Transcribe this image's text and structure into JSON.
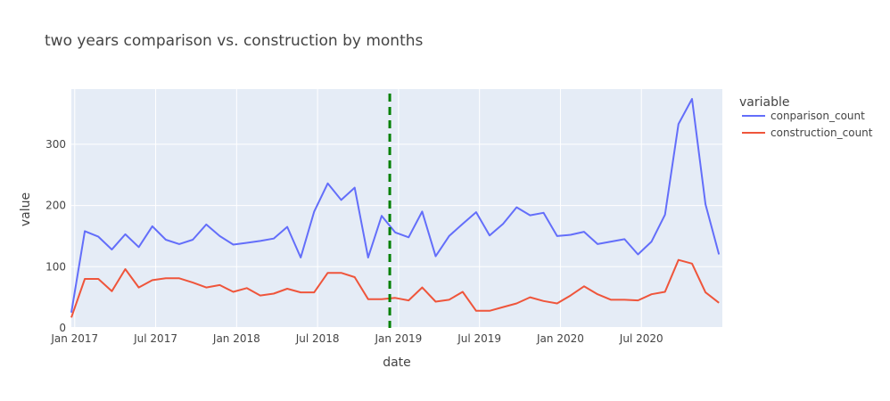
{
  "chart_data": {
    "type": "line",
    "title": "two years comparison vs. construction by months",
    "xlabel": "date",
    "ylabel": "value",
    "ylim": [
      0,
      390
    ],
    "yticks": [
      0,
      100,
      200,
      300
    ],
    "xticks": [
      {
        "label": "Jan 2017",
        "x": 0.25
      },
      {
        "label": "Jul 2017",
        "x": 6.25
      },
      {
        "label": "Jan 2018",
        "x": 12.25
      },
      {
        "label": "Jul 2018",
        "x": 18.25
      },
      {
        "label": "Jan 2019",
        "x": 24.25
      },
      {
        "label": "Jul 2019",
        "x": 30.25
      },
      {
        "label": "Jan 2020",
        "x": 36.25
      },
      {
        "label": "Jul 2020",
        "x": 42.25
      }
    ],
    "xlim": [
      0,
      48.25
    ],
    "legend": {
      "title": "variable",
      "position": "top-right"
    },
    "vline": {
      "x": 23.6,
      "color": "#008000",
      "style": "dashed"
    },
    "series": [
      {
        "name": "conparison_count",
        "color": "#636efa",
        "x": [
          0,
          1,
          2,
          3,
          4,
          5,
          6,
          7,
          8,
          9,
          10,
          11,
          12,
          13,
          14,
          15,
          16,
          17,
          18,
          19,
          20,
          21,
          22,
          23,
          24,
          25,
          26,
          27,
          28,
          29,
          30,
          31,
          32,
          33,
          34,
          35,
          36,
          37,
          38,
          39,
          40,
          41,
          42,
          43,
          44,
          45,
          46,
          47,
          48
        ],
        "values": [
          25,
          158,
          149,
          128,
          153,
          132,
          166,
          144,
          137,
          144,
          169,
          150,
          136,
          139,
          142,
          146,
          165,
          115,
          190,
          236,
          209,
          229,
          115,
          183,
          156,
          148,
          190,
          117,
          150,
          170,
          189,
          151,
          170,
          197,
          184,
          188,
          150,
          152,
          157,
          137,
          141,
          145,
          120,
          141,
          185,
          333,
          374,
          202,
          120
        ]
      },
      {
        "name": "construction_count",
        "color": "#ef553b",
        "x": [
          0,
          1,
          2,
          3,
          4,
          5,
          6,
          7,
          8,
          9,
          10,
          11,
          12,
          13,
          14,
          15,
          16,
          17,
          18,
          19,
          20,
          21,
          22,
          23,
          24,
          25,
          26,
          27,
          28,
          29,
          30,
          31,
          32,
          33,
          34,
          35,
          36,
          37,
          38,
          39,
          40,
          41,
          42,
          43,
          44,
          45,
          46,
          47,
          48
        ],
        "values": [
          17,
          80,
          80,
          60,
          96,
          66,
          78,
          81,
          81,
          74,
          66,
          70,
          59,
          65,
          53,
          56,
          64,
          58,
          58,
          90,
          90,
          83,
          47,
          47,
          49,
          45,
          66,
          43,
          46,
          59,
          28,
          28,
          34,
          40,
          50,
          44,
          40,
          53,
          68,
          55,
          46,
          46,
          45,
          55,
          59,
          111,
          105,
          58,
          41
        ]
      }
    ]
  }
}
